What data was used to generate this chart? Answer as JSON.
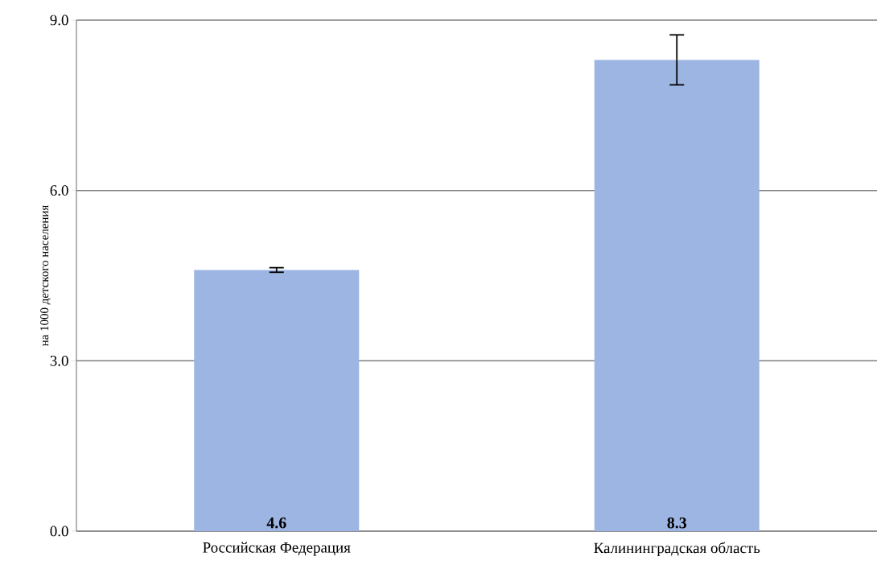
{
  "chart_data": {
    "type": "bar",
    "ylabel": "на 1000 детского населения",
    "categories": [
      "Российская Федерация",
      "Калининградская область"
    ],
    "values": [
      4.6,
      8.3
    ],
    "errors": [
      0.04,
      0.44
    ],
    "color": "#9db5e3",
    "data_labels": true,
    "ylim": [
      0,
      9
    ],
    "yticks": [
      {
        "value": 0,
        "label": "0.0"
      },
      {
        "value": 3,
        "label": "3.0"
      },
      {
        "value": 6,
        "label": "6.0"
      },
      {
        "value": 9,
        "label": "9.0"
      }
    ],
    "grid": "y"
  }
}
